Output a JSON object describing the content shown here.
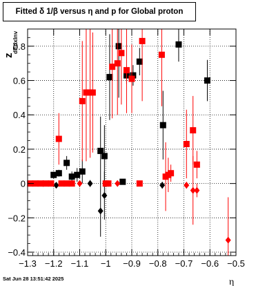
{
  "chart_data": {
    "type": "scatter",
    "title": "Fitted δ 1/β versus η and p for Global proton",
    "xlabel": "η",
    "ylabel": "z",
    "ylabel_sub": "dEdxInv",
    "xlim": [
      -1.3,
      -0.5
    ],
    "ylim": [
      -0.42,
      0.9
    ],
    "xticks": [
      -1.3,
      -1.2,
      -1.1,
      -1,
      -0.9,
      -0.8,
      -0.7,
      -0.6,
      -0.5
    ],
    "xtick_labels": [
      "−1.3",
      "−1.2",
      "−1.1",
      "−1",
      "−0.9",
      "−0.8",
      "−0.7",
      "−0.6",
      "−0.5"
    ],
    "yticks": [
      -0.4,
      -0.2,
      0,
      0.2,
      0.4,
      0.6,
      0.8
    ],
    "ytick_labels": [
      "−0.4",
      "−0.2",
      "0",
      "0.2",
      "0.4",
      "0.6",
      "0.8"
    ],
    "grid": true,
    "timestamp": "Sat Jun 28 13:51:42 2025",
    "series": [
      {
        "color": "#000000",
        "marker": "square",
        "points": [
          {
            "x": -1.2,
            "y": 0.05,
            "err": 0.02
          },
          {
            "x": -1.18,
            "y": 0.06,
            "err": 0.02
          },
          {
            "x": -1.15,
            "y": 0.12,
            "err": 0.04
          },
          {
            "x": -1.13,
            "y": 0.04,
            "err": 0.03
          },
          {
            "x": -1.11,
            "y": 0.05,
            "err": 0.04
          },
          {
            "x": -1.09,
            "y": 0.07,
            "err": 0.07
          },
          {
            "x": -1.02,
            "y": 0.19,
            "err": 0.2
          },
          {
            "x": -1.005,
            "y": 0.16,
            "err": 0.18
          },
          {
            "x": -0.985,
            "y": 0.62,
            "err": 0.25
          },
          {
            "x": -0.95,
            "y": 0.8,
            "err": 0.3
          },
          {
            "x": -0.92,
            "y": 0.63,
            "err": 0.05
          },
          {
            "x": -0.895,
            "y": 0.63,
            "err": 0.06
          },
          {
            "x": -0.87,
            "y": 0.71,
            "err": 0.08
          },
          {
            "x": -0.78,
            "y": 0.34,
            "err": 0.2
          },
          {
            "x": -0.72,
            "y": 0.81,
            "err": 0.1
          },
          {
            "x": -0.61,
            "y": 0.6,
            "err": 0.12
          },
          {
            "x": -0.935,
            "y": 0.01,
            "err": 0.015
          }
        ]
      },
      {
        "color": "#000000",
        "marker": "diamond",
        "points": [
          {
            "x": -1.19,
            "y": -0.01,
            "err": 0.01
          },
          {
            "x": -1.06,
            "y": 0.0,
            "err": 0.02
          },
          {
            "x": -1.02,
            "y": -0.16,
            "err": 0.15
          },
          {
            "x": -1.005,
            "y": -0.07,
            "err": 0.14
          },
          {
            "x": -0.783,
            "y": -0.01,
            "err": 0.02
          }
        ]
      },
      {
        "color": "#ff0000",
        "marker": "square",
        "points": [
          {
            "x": -1.29,
            "y": 0.0,
            "err": 0.01
          },
          {
            "x": -1.27,
            "y": 0.0,
            "err": 0.01
          },
          {
            "x": -1.25,
            "y": 0.0,
            "err": 0.01
          },
          {
            "x": -1.23,
            "y": 0.0,
            "err": 0.01
          },
          {
            "x": -1.21,
            "y": 0.0,
            "err": 0.01
          },
          {
            "x": -1.18,
            "y": 0.26,
            "err": 0.15
          },
          {
            "x": -1.17,
            "y": 0.0,
            "err": 0.01
          },
          {
            "x": -1.15,
            "y": 0.0,
            "err": 0.01
          },
          {
            "x": -1.13,
            "y": 0.0,
            "err": 0.01
          },
          {
            "x": -1.09,
            "y": 0.48,
            "err": 0.35
          },
          {
            "x": -1.075,
            "y": 0.53,
            "err": 0.4
          },
          {
            "x": -1.06,
            "y": 0.53,
            "err": 0.38
          },
          {
            "x": -1.05,
            "y": 0.53,
            "err": 0.35
          },
          {
            "x": -1.0,
            "y": 0.0,
            "err": 0.01
          },
          {
            "x": -0.99,
            "y": 0.0,
            "err": 0.01
          },
          {
            "x": -0.975,
            "y": 0.68,
            "err": 0.3
          },
          {
            "x": -0.955,
            "y": 0.7,
            "err": 0.3
          },
          {
            "x": -0.94,
            "y": 0.76,
            "err": 0.3
          },
          {
            "x": -0.92,
            "y": 0.66,
            "err": 0.25
          },
          {
            "x": -0.9,
            "y": 0.61,
            "err": 0.2
          },
          {
            "x": -0.87,
            "y": 0.0,
            "err": 0.01
          },
          {
            "x": -0.86,
            "y": 0.83,
            "err": 0.35
          },
          {
            "x": -0.785,
            "y": 0.75,
            "err": 0.3
          },
          {
            "x": -0.77,
            "y": 0.04,
            "err": 0.2
          },
          {
            "x": -0.76,
            "y": 0.05,
            "err": 0.1
          },
          {
            "x": -0.75,
            "y": 0.06,
            "err": 0.05
          },
          {
            "x": -0.69,
            "y": 0.23,
            "err": 0.2
          },
          {
            "x": -0.665,
            "y": 0.31,
            "err": 0.2
          },
          {
            "x": -0.65,
            "y": 0.11,
            "err": 0.08
          }
        ]
      },
      {
        "color": "#ff0000",
        "marker": "diamond",
        "points": [
          {
            "x": -1.24,
            "y": 0.0,
            "err": 0.01
          },
          {
            "x": -1.1,
            "y": 0.0,
            "err": 0.01
          },
          {
            "x": -1.0,
            "y": 0.0,
            "err": 0.01
          },
          {
            "x": -0.955,
            "y": 0.0,
            "err": 0.01
          },
          {
            "x": -0.69,
            "y": -0.01,
            "err": 0.02
          },
          {
            "x": -0.665,
            "y": -0.04,
            "err": 0.2
          },
          {
            "x": -0.65,
            "y": -0.04,
            "err": 0.04
          },
          {
            "x": -0.53,
            "y": -0.33,
            "err": 0.25
          }
        ]
      }
    ]
  }
}
